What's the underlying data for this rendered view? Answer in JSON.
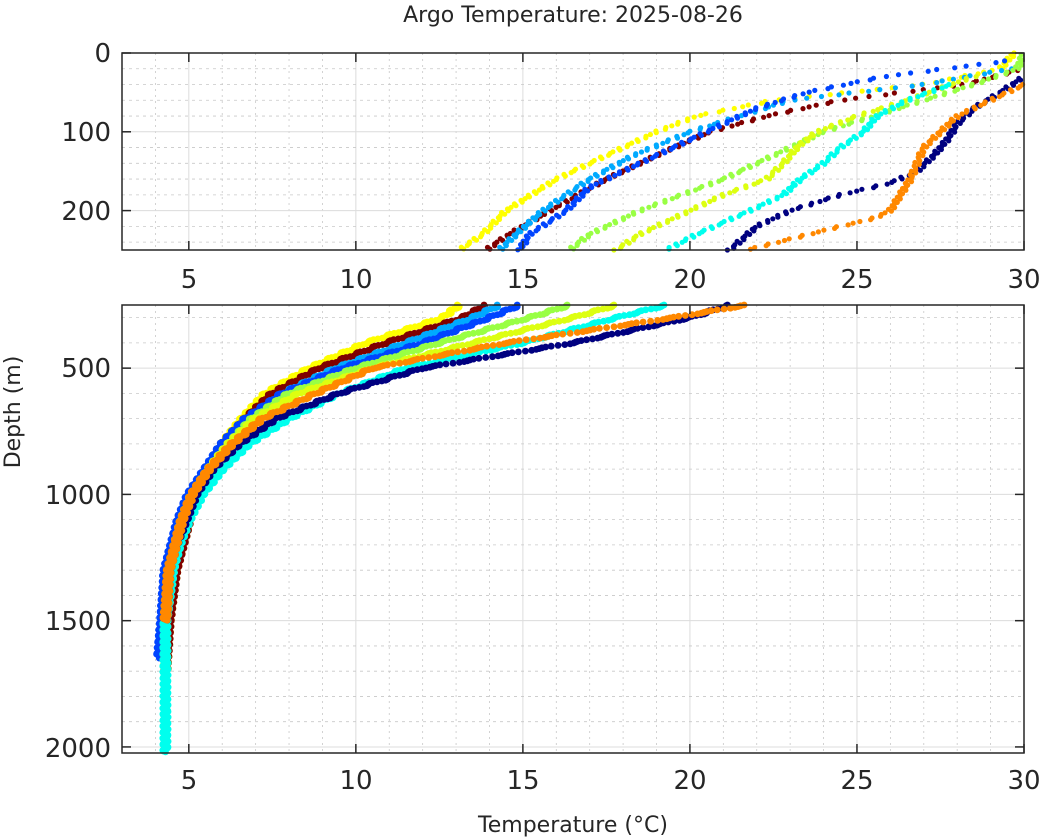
{
  "chart_data": [
    {
      "type": "scatter",
      "panel": "top",
      "title": "Argo Temperature: 2025-08-26",
      "xlabel": "",
      "ylabel": "",
      "xlim": [
        3,
        30
      ],
      "ylim": [
        0,
        250
      ],
      "y_reversed": true,
      "xticks": [
        "5",
        "10",
        "15",
        "20",
        "25",
        "30"
      ],
      "yticks": [
        "0",
        "100",
        "200"
      ],
      "grid": "major+minor",
      "marker": "dot"
    },
    {
      "type": "scatter",
      "panel": "bottom",
      "xlabel": "Temperature (°C)",
      "ylabel": "Depth (m)",
      "xlim": [
        3,
        30
      ],
      "ylim": [
        250,
        2025
      ],
      "y_reversed": true,
      "xticks": [
        "5",
        "10",
        "15",
        "20",
        "25",
        "30"
      ],
      "yticks": [
        "500",
        "1000",
        "1500",
        "2000"
      ],
      "grid": "major+minor",
      "marker": "dot"
    }
  ],
  "profiles": [
    {
      "name": "float-yellow",
      "color": "#ffff00",
      "depth": [
        0,
        20,
        40,
        60,
        80,
        100,
        130,
        160,
        200,
        230,
        250,
        300,
        400,
        500,
        600,
        700,
        800,
        900,
        1000,
        1100,
        1200,
        1300,
        1500,
        1700
      ],
      "temp": [
        29.7,
        29.3,
        27.0,
        22.5,
        20.2,
        19.0,
        17.5,
        16.0,
        14.5,
        13.8,
        13.1,
        12.6,
        10.3,
        8.6,
        7.3,
        6.6,
        6.0,
        5.6,
        5.3,
        5.0,
        4.8,
        4.6,
        4.4,
        4.3
      ]
    },
    {
      "name": "float-maroon",
      "color": "#800000",
      "depth": [
        20,
        40,
        60,
        80,
        100,
        130,
        160,
        200,
        230,
        250,
        300,
        400,
        500,
        600,
        700,
        800,
        900,
        1000,
        1100,
        1200,
        1300,
        1500,
        1700
      ],
      "temp": [
        30.0,
        28.2,
        24.5,
        22.3,
        20.6,
        19.0,
        17.5,
        15.8,
        14.6,
        13.9,
        13.2,
        10.9,
        8.9,
        7.5,
        6.7,
        6.0,
        5.6,
        5.3,
        5.0,
        4.8,
        4.6,
        4.4,
        4.3
      ]
    },
    {
      "name": "float-light-blue",
      "color": "#00aaff",
      "depth": [
        20,
        40,
        60,
        80,
        100,
        130,
        160,
        200,
        230,
        250,
        300,
        400,
        500,
        600,
        700,
        800,
        900,
        1000,
        1100,
        1200,
        1300,
        1500
      ],
      "temp": [
        29.6,
        27.0,
        23.0,
        21.5,
        20.0,
        18.3,
        17.0,
        15.6,
        14.8,
        14.3,
        13.5,
        11.5,
        9.4,
        7.8,
        6.8,
        6.0,
        5.6,
        5.2,
        4.9,
        4.7,
        4.5,
        4.3
      ]
    },
    {
      "name": "float-blue",
      "color": "#0044ff",
      "depth": [
        10,
        30,
        50,
        70,
        90,
        110,
        140,
        170,
        200,
        230,
        250,
        300,
        400,
        500,
        600,
        700,
        800,
        900,
        1000,
        1100,
        1200,
        1300,
        1500,
        1650
      ],
      "temp": [
        29.5,
        25.8,
        23.5,
        22.0,
        21.0,
        20.0,
        18.5,
        17.0,
        16.3,
        15.2,
        14.9,
        14.0,
        12.0,
        9.6,
        7.8,
        6.7,
        6.0,
        5.5,
        5.0,
        4.7,
        4.5,
        4.3,
        4.2,
        4.1
      ]
    },
    {
      "name": "float-light-green",
      "color": "#99ff44",
      "depth": [
        0,
        20,
        40,
        60,
        80,
        100,
        130,
        160,
        200,
        230,
        250,
        300,
        400,
        500,
        600,
        700,
        800,
        900,
        1000,
        1100,
        1200,
        1300,
        1500,
        1700
      ],
      "temp": [
        30.0,
        29.8,
        28.5,
        27.0,
        25.5,
        24.0,
        22.5,
        21.0,
        18.5,
        17.0,
        16.4,
        15.2,
        12.5,
        10.0,
        8.0,
        6.9,
        6.2,
        5.6,
        5.2,
        4.9,
        4.7,
        4.5,
        4.3,
        4.3
      ]
    },
    {
      "name": "float-yellow-green",
      "color": "#ddff11",
      "depth": [
        30,
        60,
        80,
        100,
        120,
        140,
        160,
        180,
        200,
        230,
        250,
        300,
        400,
        500,
        600,
        700,
        800,
        900,
        1000,
        1100,
        1200,
        1300,
        1500
      ],
      "temp": [
        28.5,
        26.5,
        25.0,
        23.8,
        23.2,
        22.8,
        22.3,
        21.0,
        20.0,
        18.5,
        17.8,
        16.5,
        13.5,
        10.5,
        8.3,
        7.0,
        6.2,
        5.6,
        5.1,
        4.8,
        4.6,
        4.4,
        4.3
      ]
    },
    {
      "name": "float-cyan",
      "color": "#00ffee",
      "depth": [
        40,
        60,
        80,
        100,
        120,
        140,
        160,
        180,
        200,
        230,
        250,
        300,
        400,
        500,
        600,
        700,
        800,
        900,
        1000,
        1100,
        1200,
        1300,
        1500,
        1700,
        2020
      ],
      "temp": [
        27.8,
        26.5,
        25.6,
        25.2,
        24.5,
        24.0,
        23.3,
        22.8,
        21.8,
        20.2,
        19.3,
        17.8,
        15.0,
        11.5,
        9.5,
        8.0,
        6.8,
        6.0,
        5.4,
        5.0,
        4.7,
        4.5,
        4.3,
        4.3,
        4.3
      ]
    },
    {
      "name": "float-navy",
      "color": "#000080",
      "depth": [
        30,
        50,
        70,
        90,
        110,
        130,
        150,
        165,
        180,
        200,
        220,
        250,
        300,
        400,
        500,
        600,
        700,
        800,
        900,
        1000,
        1100,
        1200,
        1300,
        1500
      ],
      "temp": [
        30.0,
        29.3,
        28.5,
        28.0,
        27.7,
        27.3,
        26.8,
        26.0,
        24.5,
        23.0,
        22.0,
        21.2,
        20.0,
        16.5,
        12.0,
        9.5,
        7.6,
        6.5,
        5.7,
        5.2,
        4.9,
        4.6,
        4.4,
        4.3
      ]
    },
    {
      "name": "float-orange",
      "color": "#ff8800",
      "depth": [
        40,
        60,
        80,
        100,
        120,
        140,
        160,
        180,
        200,
        210,
        220,
        250,
        300,
        400,
        500,
        600,
        700,
        800,
        900,
        1000,
        1100,
        1200,
        1300,
        1500
      ],
      "temp": [
        30.0,
        29.0,
        28.0,
        27.5,
        27.0,
        26.8,
        26.6,
        26.3,
        26.0,
        25.5,
        24.5,
        21.7,
        19.5,
        14.5,
        10.5,
        8.8,
        7.2,
        6.3,
        5.6,
        5.1,
        4.8,
        4.6,
        4.4,
        4.3
      ]
    }
  ]
}
